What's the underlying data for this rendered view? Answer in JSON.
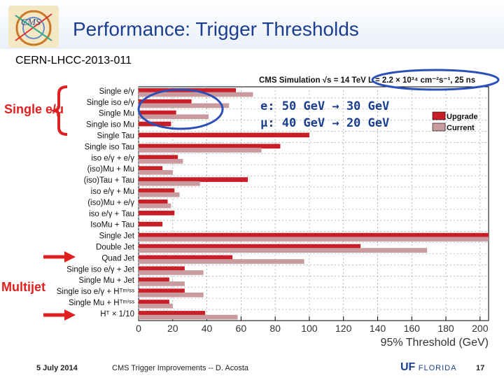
{
  "header": {
    "title": "Performance: Trigger Thresholds",
    "doc_id": "CERN-LHCC-2013-011"
  },
  "annotations": {
    "single_label": "Single e/μ",
    "multijet_label": "Multijet",
    "note_line1": "e: 50 GeV → 30 GeV",
    "note_line2": "μ: 40 GeV → 20 GeV"
  },
  "footer": {
    "date": "5 July 2014",
    "talk": "CMS Trigger Improvements  -- D. Acosta",
    "page": "17",
    "logo_text": "UF",
    "logo_word": "FLORIDA"
  },
  "chart_data": {
    "type": "bar",
    "orientation": "horizontal",
    "header_text": "CMS Simulation  √s = 14 TeV  L = 2.2 × 10³⁴ cm⁻²s⁻¹, 25 ns",
    "xlabel": "95% Threshold (GeV)",
    "xlim": [
      0,
      205
    ],
    "xticks": [
      0,
      20,
      40,
      60,
      80,
      100,
      120,
      140,
      160,
      180,
      200
    ],
    "grid": true,
    "legend_position": "top-right",
    "categories": [
      "Single e/γ",
      "Single iso e/γ",
      "Single Mu",
      "Single iso Mu",
      "Single Tau",
      "Single iso Tau",
      "iso e/γ + e/γ",
      "(iso)Mu + Mu",
      "(iso)Tau + Tau",
      "iso e/γ + Mu",
      "(iso)Mu + e/γ",
      "iso e/γ + Tau",
      "IsoMu + Tau",
      "Single Jet",
      "Double Jet",
      "Quad Jet",
      "Single iso e/γ + Jet",
      "Single Mu + Jet",
      "Single iso e/γ + Hᵀᵐⁱˢˢ",
      "Single Mu + Hᵀᵐⁱˢˢ",
      "Hᵀ × 1/10"
    ],
    "series": [
      {
        "name": "Upgrade",
        "color": "#c81e28",
        "values": [
          57,
          31,
          22,
          19,
          100,
          83,
          23,
          14,
          64,
          21,
          17,
          21,
          14,
          205,
          130,
          55,
          27,
          18,
          27,
          18,
          39
        ]
      },
      {
        "name": "Current",
        "color": "#c99a9e",
        "values": [
          67,
          53,
          41,
          0,
          0,
          72,
          26,
          20,
          36,
          24,
          19,
          0,
          0,
          205,
          169,
          97,
          38,
          27,
          38,
          20,
          58
        ]
      }
    ]
  }
}
